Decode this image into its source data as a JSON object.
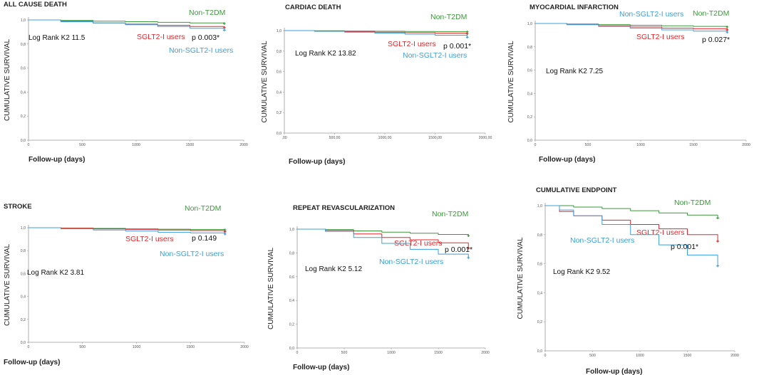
{
  "figure": {
    "colors": {
      "non_t2dm": "#3a9a3a",
      "sglt2": "#e3262a",
      "non_sglt2": "#3b9fdd"
    }
  },
  "chart_data": [
    {
      "type": "line",
      "title": "ALL CAUSE DEATH",
      "ylabel": "CUMULATIVE SURVIVAL",
      "xlabel": "Follow-up (days)",
      "xlim": [
        0,
        2000
      ],
      "ylim": [
        0,
        1
      ],
      "xticks": [
        "0",
        "500",
        "1000",
        "1500",
        "2000"
      ],
      "yticks": [
        "0,0",
        "0,2",
        "0,4",
        "0,6",
        "0,8",
        "1,0"
      ],
      "series": [
        {
          "name": "Non-T2DM",
          "color": "#3a9a3a",
          "x": [
            0,
            300,
            600,
            900,
            1200,
            1500,
            1820
          ],
          "y": [
            1.0,
            0.995,
            0.99,
            0.985,
            0.98,
            0.975,
            0.97
          ]
        },
        {
          "name": "SGLT2-I users",
          "color": "#e3262a",
          "x": [
            0,
            300,
            600,
            900,
            1200,
            1500,
            1820
          ],
          "y": [
            1.0,
            0.99,
            0.975,
            0.965,
            0.955,
            0.945,
            0.935
          ]
        },
        {
          "name": "Non-SGLT2-I users",
          "color": "#3b9fdd",
          "x": [
            0,
            300,
            600,
            900,
            1200,
            1500,
            1820
          ],
          "y": [
            1.0,
            0.985,
            0.975,
            0.96,
            0.945,
            0.93,
            0.915
          ]
        }
      ],
      "annotations": {
        "log_rank": "Log Rank K2 11.5",
        "p_value": "p 0.003*"
      }
    },
    {
      "type": "line",
      "title": "CARDIAC DEATH",
      "ylabel": "CUMULATIVE SURVIVAL",
      "xlabel": "Follow-up (days)",
      "xlim": [
        0,
        2000
      ],
      "ylim": [
        0,
        1
      ],
      "xticks": [
        ",00",
        "500,00",
        "1000,00",
        "1500,00",
        "2000,00"
      ],
      "yticks": [
        "0,0",
        "0,2",
        "0,4",
        "0,6",
        "0,8",
        "1,0"
      ],
      "series": [
        {
          "name": "Non-T2DM",
          "color": "#3a9a3a",
          "x": [
            0,
            300,
            600,
            900,
            1200,
            1500,
            1820
          ],
          "y": [
            1.0,
            0.998,
            0.996,
            0.994,
            0.992,
            0.99,
            0.988
          ]
        },
        {
          "name": "SGLT2-I users",
          "color": "#e3262a",
          "x": [
            0,
            300,
            600,
            900,
            1200,
            1500,
            1820
          ],
          "y": [
            1.0,
            0.996,
            0.99,
            0.985,
            0.98,
            0.975,
            0.97
          ]
        },
        {
          "name": "Non-SGLT2-I users",
          "color": "#3b9fdd",
          "x": [
            0,
            300,
            600,
            900,
            1200,
            1500,
            1820
          ],
          "y": [
            1.0,
            0.993,
            0.985,
            0.975,
            0.965,
            0.955,
            0.935
          ]
        }
      ],
      "annotations": {
        "log_rank": "Log Rank K2 13.82",
        "p_value": "p 0.001*"
      }
    },
    {
      "type": "line",
      "title": "MYOCARDIAL INFARCTION",
      "ylabel": "CUMULATIVE SURVIVAL",
      "xlabel": "Follow-up (days)",
      "xlim": [
        0,
        2000
      ],
      "ylim": [
        0,
        1
      ],
      "xticks": [
        "0",
        "500",
        "1000",
        "1500",
        "2000"
      ],
      "yticks": [
        "0,0",
        "0,2",
        "0,4",
        "0,6",
        "0,8",
        "1,0"
      ],
      "series": [
        {
          "name": "Non-T2DM",
          "color": "#3a9a3a",
          "x": [
            0,
            300,
            600,
            900,
            1200,
            1500,
            1820
          ],
          "y": [
            1.0,
            0.995,
            0.99,
            0.985,
            0.98,
            0.975,
            0.97
          ]
        },
        {
          "name": "SGLT2-I users",
          "color": "#e3262a",
          "x": [
            0,
            300,
            600,
            900,
            1200,
            1500,
            1820
          ],
          "y": [
            1.0,
            0.99,
            0.98,
            0.97,
            0.96,
            0.955,
            0.945
          ]
        },
        {
          "name": "Non-SGLT2-I users",
          "color": "#3b9fdd",
          "x": [
            0,
            300,
            600,
            900,
            1200,
            1500,
            1820
          ],
          "y": [
            1.0,
            0.99,
            0.975,
            0.96,
            0.945,
            0.935,
            0.925
          ]
        }
      ],
      "annotations": {
        "log_rank": "Log Rank K2 7.25",
        "p_value": "p 0.027*"
      }
    },
    {
      "type": "line",
      "title": "STROKE",
      "ylabel": "CUMULATIVE SURVIVAL",
      "xlabel": "Follow-up (days)",
      "xlim": [
        0,
        2000
      ],
      "ylim": [
        0,
        1
      ],
      "xticks": [
        "0",
        "500",
        "1000",
        "1500",
        "2000"
      ],
      "yticks": [
        "0,0",
        "0,2",
        "0,4",
        "0,6",
        "0,8",
        "1,0"
      ],
      "series": [
        {
          "name": "Non-T2DM",
          "color": "#3a9a3a",
          "x": [
            0,
            300,
            600,
            900,
            1200,
            1500,
            1820
          ],
          "y": [
            1.0,
            0.997,
            0.994,
            0.99,
            0.987,
            0.984,
            0.98
          ]
        },
        {
          "name": "SGLT2-I users",
          "color": "#e3262a",
          "x": [
            0,
            300,
            600,
            900,
            1200,
            1500,
            1820
          ],
          "y": [
            1.0,
            0.995,
            0.99,
            0.985,
            0.98,
            0.975,
            0.965
          ]
        },
        {
          "name": "Non-SGLT2-I users",
          "color": "#3b9fdd",
          "x": [
            0,
            300,
            600,
            900,
            1200,
            1500,
            1820
          ],
          "y": [
            1.0,
            0.99,
            0.98,
            0.97,
            0.96,
            0.955,
            0.945
          ]
        }
      ],
      "annotations": {
        "log_rank": "Log Rank K2 3.81",
        "p_value": "p 0.149"
      }
    },
    {
      "type": "line",
      "title": "REPEAT REVASCULARIZATION",
      "ylabel": "CUMULATIVE SURVIVAL",
      "xlabel": "Follow-up (days)",
      "xlim": [
        0,
        2000
      ],
      "ylim": [
        0,
        1
      ],
      "xticks": [
        "0",
        "500",
        "1000",
        "1500",
        "2000"
      ],
      "yticks": [
        "0,0",
        "0,2",
        "0,4",
        "0,6",
        "0,8",
        "1,0"
      ],
      "series": [
        {
          "name": "Non-T2DM",
          "color": "#3a9a3a",
          "x": [
            0,
            300,
            600,
            900,
            1200,
            1500,
            1820
          ],
          "y": [
            1.0,
            0.995,
            0.985,
            0.975,
            0.965,
            0.955,
            0.945
          ]
        },
        {
          "name": "SGLT2-I users",
          "color": "#e3262a",
          "x": [
            0,
            300,
            600,
            900,
            1200,
            1500,
            1820
          ],
          "y": [
            1.0,
            0.99,
            0.96,
            0.93,
            0.91,
            0.885,
            0.84
          ]
        },
        {
          "name": "Non-SGLT2-I users",
          "color": "#3b9fdd",
          "x": [
            0,
            300,
            600,
            900,
            1200,
            1500,
            1820
          ],
          "y": [
            1.0,
            0.98,
            0.93,
            0.88,
            0.83,
            0.79,
            0.76
          ]
        }
      ],
      "annotations": {
        "log_rank": "Log Rank K2 5.12",
        "p_value": "p 0.001*"
      }
    },
    {
      "type": "line",
      "title": "CUMULATIVE ENDPOINT",
      "ylabel": "CUMULATIVE SURVIVAL",
      "xlabel": "Follow-up (days)",
      "xlim": [
        0,
        2000
      ],
      "ylim": [
        0,
        1
      ],
      "xticks": [
        "0",
        "500",
        "1000",
        "1500",
        "2000"
      ],
      "yticks": [
        "0,0",
        "0,2",
        "0,4",
        "0,6",
        "0,8",
        "1,0"
      ],
      "series": [
        {
          "name": "Non-T2DM",
          "color": "#3a9a3a",
          "x": [
            0,
            300,
            600,
            900,
            1200,
            1500,
            1820
          ],
          "y": [
            1.0,
            0.99,
            0.98,
            0.965,
            0.95,
            0.935,
            0.915
          ]
        },
        {
          "name": "SGLT2-I users",
          "color": "#e3262a",
          "x": [
            0,
            150,
            300,
            600,
            900,
            1200,
            1500,
            1820
          ],
          "y": [
            1.0,
            0.96,
            0.93,
            0.9,
            0.87,
            0.84,
            0.8,
            0.755
          ]
        },
        {
          "name": "Non-SGLT2-I users",
          "color": "#3b9fdd",
          "x": [
            0,
            150,
            300,
            600,
            900,
            1200,
            1500,
            1820
          ],
          "y": [
            1.0,
            0.97,
            0.93,
            0.87,
            0.8,
            0.73,
            0.66,
            0.585
          ]
        }
      ],
      "annotations": {
        "log_rank": "Log Rank K2 9.52",
        "p_value": "p 0.001*"
      }
    }
  ]
}
